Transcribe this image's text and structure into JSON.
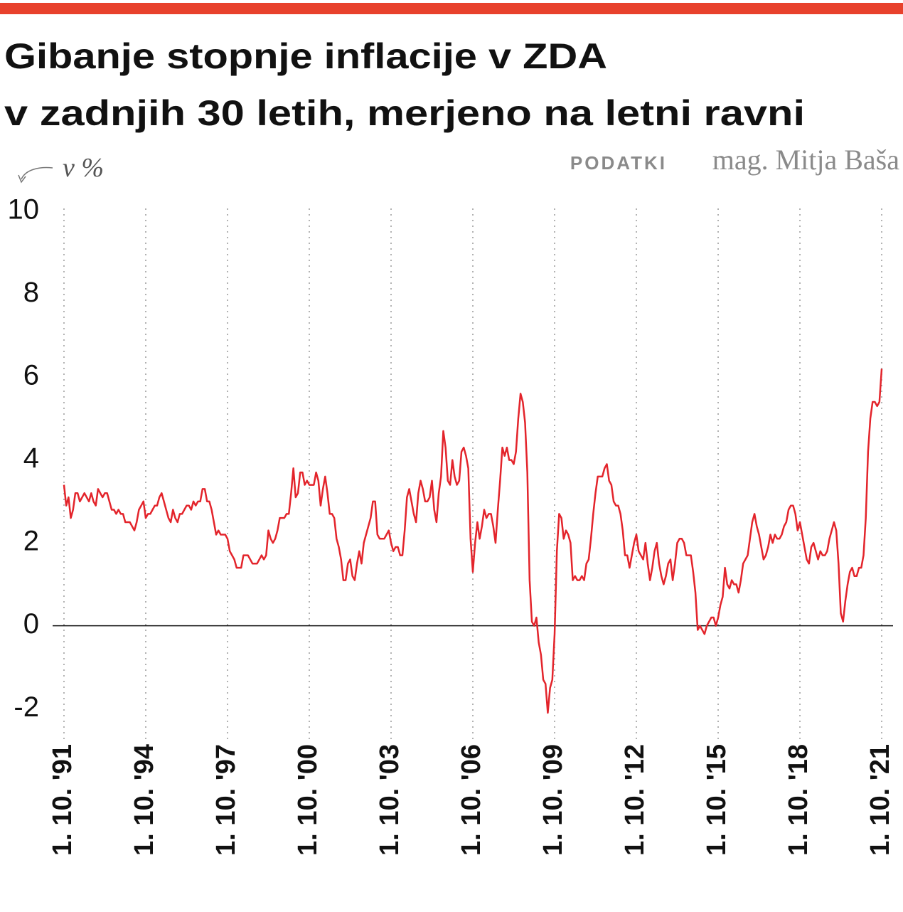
{
  "chart_data": {
    "type": "line",
    "title": "Gibanje stopnje inflacije v ZDA",
    "subtitle": "v zadnjih 30 letih, merjeno na letni ravni",
    "source_label": "PODATKI",
    "source": "mag. Mitja Baša",
    "y_unit_label": "v %",
    "xlim": [
      "1991-05",
      "2022-03"
    ],
    "ylim": [
      -2.7,
      10
    ],
    "yticks": [
      -2,
      0,
      2,
      4,
      6,
      8,
      10
    ],
    "xticks": [
      {
        "value": "1991-10",
        "label": "1. 10. '91"
      },
      {
        "value": "1994-10",
        "label": "1. 10. '94"
      },
      {
        "value": "1997-10",
        "label": "1. 10. '97"
      },
      {
        "value": "2000-10",
        "label": "1. 10. '00"
      },
      {
        "value": "2003-10",
        "label": "1. 10. '03"
      },
      {
        "value": "2006-10",
        "label": "1. 10. '06"
      },
      {
        "value": "2009-10",
        "label": "1. 10. '09"
      },
      {
        "value": "2012-10",
        "label": "1. 10. '12"
      },
      {
        "value": "2015-10",
        "label": "1. 10. '15"
      },
      {
        "value": "2018-10",
        "label": "1. 10. '18"
      },
      {
        "value": "2021-10",
        "label": "1. 10. '21"
      }
    ],
    "grid": true,
    "x": [
      "1991-10",
      "1991-11",
      "1991-12",
      "1992-01",
      "1992-02",
      "1992-03",
      "1992-04",
      "1992-05",
      "1992-06",
      "1992-07",
      "1992-08",
      "1992-09",
      "1992-10",
      "1992-11",
      "1992-12",
      "1993-01",
      "1993-02",
      "1993-03",
      "1993-04",
      "1993-05",
      "1993-06",
      "1993-07",
      "1993-08",
      "1993-09",
      "1993-10",
      "1993-11",
      "1993-12",
      "1994-01",
      "1994-02",
      "1994-03",
      "1994-04",
      "1994-05",
      "1994-06",
      "1994-07",
      "1994-08",
      "1994-09",
      "1994-10",
      "1994-11",
      "1994-12",
      "1995-01",
      "1995-02",
      "1995-03",
      "1995-04",
      "1995-05",
      "1995-06",
      "1995-07",
      "1995-08",
      "1995-09",
      "1995-10",
      "1995-11",
      "1995-12",
      "1996-01",
      "1996-02",
      "1996-03",
      "1996-04",
      "1996-05",
      "1996-06",
      "1996-07",
      "1996-08",
      "1996-09",
      "1996-10",
      "1996-11",
      "1996-12",
      "1997-01",
      "1997-02",
      "1997-03",
      "1997-04",
      "1997-05",
      "1997-06",
      "1997-07",
      "1997-08",
      "1997-09",
      "1997-10",
      "1997-11",
      "1997-12",
      "1998-01",
      "1998-02",
      "1998-03",
      "1998-04",
      "1998-05",
      "1998-06",
      "1998-07",
      "1998-08",
      "1998-09",
      "1998-10",
      "1998-11",
      "1998-12",
      "1999-01",
      "1999-02",
      "1999-03",
      "1999-04",
      "1999-05",
      "1999-06",
      "1999-07",
      "1999-08",
      "1999-09",
      "1999-10",
      "1999-11",
      "1999-12",
      "2000-01",
      "2000-02",
      "2000-03",
      "2000-04",
      "2000-05",
      "2000-06",
      "2000-07",
      "2000-08",
      "2000-09",
      "2000-10",
      "2000-11",
      "2000-12",
      "2001-01",
      "2001-02",
      "2001-03",
      "2001-04",
      "2001-05",
      "2001-06",
      "2001-07",
      "2001-08",
      "2001-09",
      "2001-10",
      "2001-11",
      "2001-12",
      "2002-01",
      "2002-02",
      "2002-03",
      "2002-04",
      "2002-05",
      "2002-06",
      "2002-07",
      "2002-08",
      "2002-09",
      "2002-10",
      "2002-11",
      "2002-12",
      "2003-01",
      "2003-02",
      "2003-03",
      "2003-04",
      "2003-05",
      "2003-06",
      "2003-07",
      "2003-08",
      "2003-09",
      "2003-10",
      "2003-11",
      "2003-12",
      "2004-01",
      "2004-02",
      "2004-03",
      "2004-04",
      "2004-05",
      "2004-06",
      "2004-07",
      "2004-08",
      "2004-09",
      "2004-10",
      "2004-11",
      "2004-12",
      "2005-01",
      "2005-02",
      "2005-03",
      "2005-04",
      "2005-05",
      "2005-06",
      "2005-07",
      "2005-08",
      "2005-09",
      "2005-10",
      "2005-11",
      "2005-12",
      "2006-01",
      "2006-02",
      "2006-03",
      "2006-04",
      "2006-05",
      "2006-06",
      "2006-07",
      "2006-08",
      "2006-09",
      "2006-10",
      "2006-11",
      "2006-12",
      "2007-01",
      "2007-02",
      "2007-03",
      "2007-04",
      "2007-05",
      "2007-06",
      "2007-07",
      "2007-08",
      "2007-09",
      "2007-10",
      "2007-11",
      "2007-12",
      "2008-01",
      "2008-02",
      "2008-03",
      "2008-04",
      "2008-05",
      "2008-06",
      "2008-07",
      "2008-08",
      "2008-09",
      "2008-10",
      "2008-11",
      "2008-12",
      "2009-01",
      "2009-02",
      "2009-03",
      "2009-04",
      "2009-05",
      "2009-06",
      "2009-07",
      "2009-08",
      "2009-09",
      "2009-10",
      "2009-11",
      "2009-12",
      "2010-01",
      "2010-02",
      "2010-03",
      "2010-04",
      "2010-05",
      "2010-06",
      "2010-07",
      "2010-08",
      "2010-09",
      "2010-10",
      "2010-11",
      "2010-12",
      "2011-01",
      "2011-02",
      "2011-03",
      "2011-04",
      "2011-05",
      "2011-06",
      "2011-07",
      "2011-08",
      "2011-09",
      "2011-10",
      "2011-11",
      "2011-12",
      "2012-01",
      "2012-02",
      "2012-03",
      "2012-04",
      "2012-05",
      "2012-06",
      "2012-07",
      "2012-08",
      "2012-09",
      "2012-10",
      "2012-11",
      "2012-12",
      "2013-01",
      "2013-02",
      "2013-03",
      "2013-04",
      "2013-05",
      "2013-06",
      "2013-07",
      "2013-08",
      "2013-09",
      "2013-10",
      "2013-11",
      "2013-12",
      "2014-01",
      "2014-02",
      "2014-03",
      "2014-04",
      "2014-05",
      "2014-06",
      "2014-07",
      "2014-08",
      "2014-09",
      "2014-10",
      "2014-11",
      "2014-12",
      "2015-01",
      "2015-02",
      "2015-03",
      "2015-04",
      "2015-05",
      "2015-06",
      "2015-07",
      "2015-08",
      "2015-09",
      "2015-10",
      "2015-11",
      "2015-12",
      "2016-01",
      "2016-02",
      "2016-03",
      "2016-04",
      "2016-05",
      "2016-06",
      "2016-07",
      "2016-08",
      "2016-09",
      "2016-10",
      "2016-11",
      "2016-12",
      "2017-01",
      "2017-02",
      "2017-03",
      "2017-04",
      "2017-05",
      "2017-06",
      "2017-07",
      "2017-08",
      "2017-09",
      "2017-10",
      "2017-11",
      "2017-12",
      "2018-01",
      "2018-02",
      "2018-03",
      "2018-04",
      "2018-05",
      "2018-06",
      "2018-07",
      "2018-08",
      "2018-09",
      "2018-10",
      "2018-11",
      "2018-12",
      "2019-01",
      "2019-02",
      "2019-03",
      "2019-04",
      "2019-05",
      "2019-06",
      "2019-07",
      "2019-08",
      "2019-09",
      "2019-10",
      "2019-11",
      "2019-12",
      "2020-01",
      "2020-02",
      "2020-03",
      "2020-04",
      "2020-05",
      "2020-06",
      "2020-07",
      "2020-08",
      "2020-09",
      "2020-10",
      "2020-11",
      "2020-12",
      "2021-01",
      "2021-02",
      "2021-03",
      "2021-04",
      "2021-05",
      "2021-06",
      "2021-07",
      "2021-08",
      "2021-09",
      "2021-10"
    ],
    "series": [
      {
        "color": "#e3242b",
        "values": [
          3.4,
          2.9,
          3.1,
          2.6,
          2.8,
          3.2,
          3.2,
          3.0,
          3.1,
          3.2,
          3.1,
          3.0,
          3.2,
          3.0,
          2.9,
          3.3,
          3.2,
          3.1,
          3.2,
          3.2,
          3.0,
          2.8,
          2.8,
          2.7,
          2.8,
          2.7,
          2.7,
          2.5,
          2.5,
          2.5,
          2.4,
          2.3,
          2.5,
          2.8,
          2.9,
          3.0,
          2.6,
          2.7,
          2.7,
          2.8,
          2.9,
          2.9,
          3.1,
          3.2,
          3.0,
          2.8,
          2.6,
          2.5,
          2.8,
          2.6,
          2.5,
          2.7,
          2.7,
          2.8,
          2.9,
          2.9,
          2.8,
          3.0,
          2.9,
          3.0,
          3.0,
          3.3,
          3.3,
          3.0,
          3.0,
          2.8,
          2.5,
          2.2,
          2.3,
          2.2,
          2.2,
          2.2,
          2.1,
          1.8,
          1.7,
          1.6,
          1.4,
          1.4,
          1.4,
          1.7,
          1.7,
          1.7,
          1.6,
          1.5,
          1.5,
          1.5,
          1.6,
          1.7,
          1.6,
          1.7,
          2.3,
          2.1,
          2.0,
          2.1,
          2.3,
          2.6,
          2.6,
          2.6,
          2.7,
          2.7,
          3.2,
          3.8,
          3.1,
          3.2,
          3.7,
          3.7,
          3.4,
          3.5,
          3.4,
          3.4,
          3.4,
          3.7,
          3.5,
          2.9,
          3.3,
          3.6,
          3.2,
          2.7,
          2.7,
          2.6,
          2.1,
          1.9,
          1.6,
          1.1,
          1.1,
          1.5,
          1.6,
          1.2,
          1.1,
          1.5,
          1.8,
          1.5,
          2.0,
          2.2,
          2.4,
          2.6,
          3.0,
          3.0,
          2.2,
          2.1,
          2.1,
          2.1,
          2.2,
          2.3,
          2.0,
          1.8,
          1.9,
          1.9,
          1.7,
          1.7,
          2.3,
          3.1,
          3.3,
          3.0,
          2.7,
          2.5,
          3.2,
          3.5,
          3.3,
          3.0,
          3.0,
          3.1,
          3.5,
          2.8,
          2.5,
          3.2,
          3.6,
          4.7,
          4.3,
          3.5,
          3.4,
          4.0,
          3.6,
          3.4,
          3.5,
          4.2,
          4.3,
          4.1,
          3.8,
          2.1,
          1.3,
          2.0,
          2.5,
          2.1,
          2.4,
          2.8,
          2.6,
          2.7,
          2.7,
          2.4,
          2.0,
          2.8,
          3.5,
          4.3,
          4.1,
          4.3,
          4.0,
          4.0,
          3.9,
          4.2,
          5.0,
          5.6,
          5.4,
          4.9,
          3.7,
          1.1,
          0.1,
          0.0,
          0.2,
          -0.4,
          -0.7,
          -1.3,
          -1.4,
          -2.1,
          -1.5,
          -1.3,
          -0.2,
          1.8,
          2.7,
          2.6,
          2.1,
          2.3,
          2.2,
          2.0,
          1.1,
          1.2,
          1.1,
          1.1,
          1.2,
          1.1,
          1.5,
          1.6,
          2.1,
          2.7,
          3.2,
          3.6,
          3.6,
          3.6,
          3.8,
          3.9,
          3.5,
          3.4,
          3.0,
          2.9,
          2.9,
          2.7,
          2.3,
          1.7,
          1.7,
          1.4,
          1.7,
          2.0,
          2.2,
          1.8,
          1.7,
          1.6,
          2.0,
          1.5,
          1.1,
          1.4,
          1.8,
          2.0,
          1.5,
          1.2,
          1.0,
          1.2,
          1.5,
          1.6,
          1.1,
          1.5,
          2.0,
          2.1,
          2.1,
          2.0,
          1.7,
          1.7,
          1.7,
          1.3,
          0.8,
          -0.1,
          0.0,
          -0.1,
          -0.2,
          0.0,
          0.1,
          0.2,
          0.2,
          0.0,
          0.2,
          0.5,
          0.7,
          1.4,
          1.0,
          0.9,
          1.1,
          1.0,
          1.0,
          0.8,
          1.1,
          1.5,
          1.6,
          1.7,
          2.1,
          2.5,
          2.7,
          2.4,
          2.2,
          1.9,
          1.6,
          1.7,
          1.9,
          2.2,
          2.0,
          2.2,
          2.1,
          2.1,
          2.2,
          2.4,
          2.5,
          2.8,
          2.9,
          2.9,
          2.7,
          2.3,
          2.5,
          2.2,
          1.9,
          1.6,
          1.5,
          1.9,
          2.0,
          1.8,
          1.6,
          1.8,
          1.7,
          1.7,
          1.8,
          2.1,
          2.3,
          2.5,
          2.3,
          1.5,
          0.3,
          0.1,
          0.6,
          1.0,
          1.3,
          1.4,
          1.2,
          1.2,
          1.4,
          1.4,
          1.7,
          2.6,
          4.2,
          5.0,
          5.4,
          5.4,
          5.3,
          5.4,
          6.2
        ]
      }
    ]
  }
}
